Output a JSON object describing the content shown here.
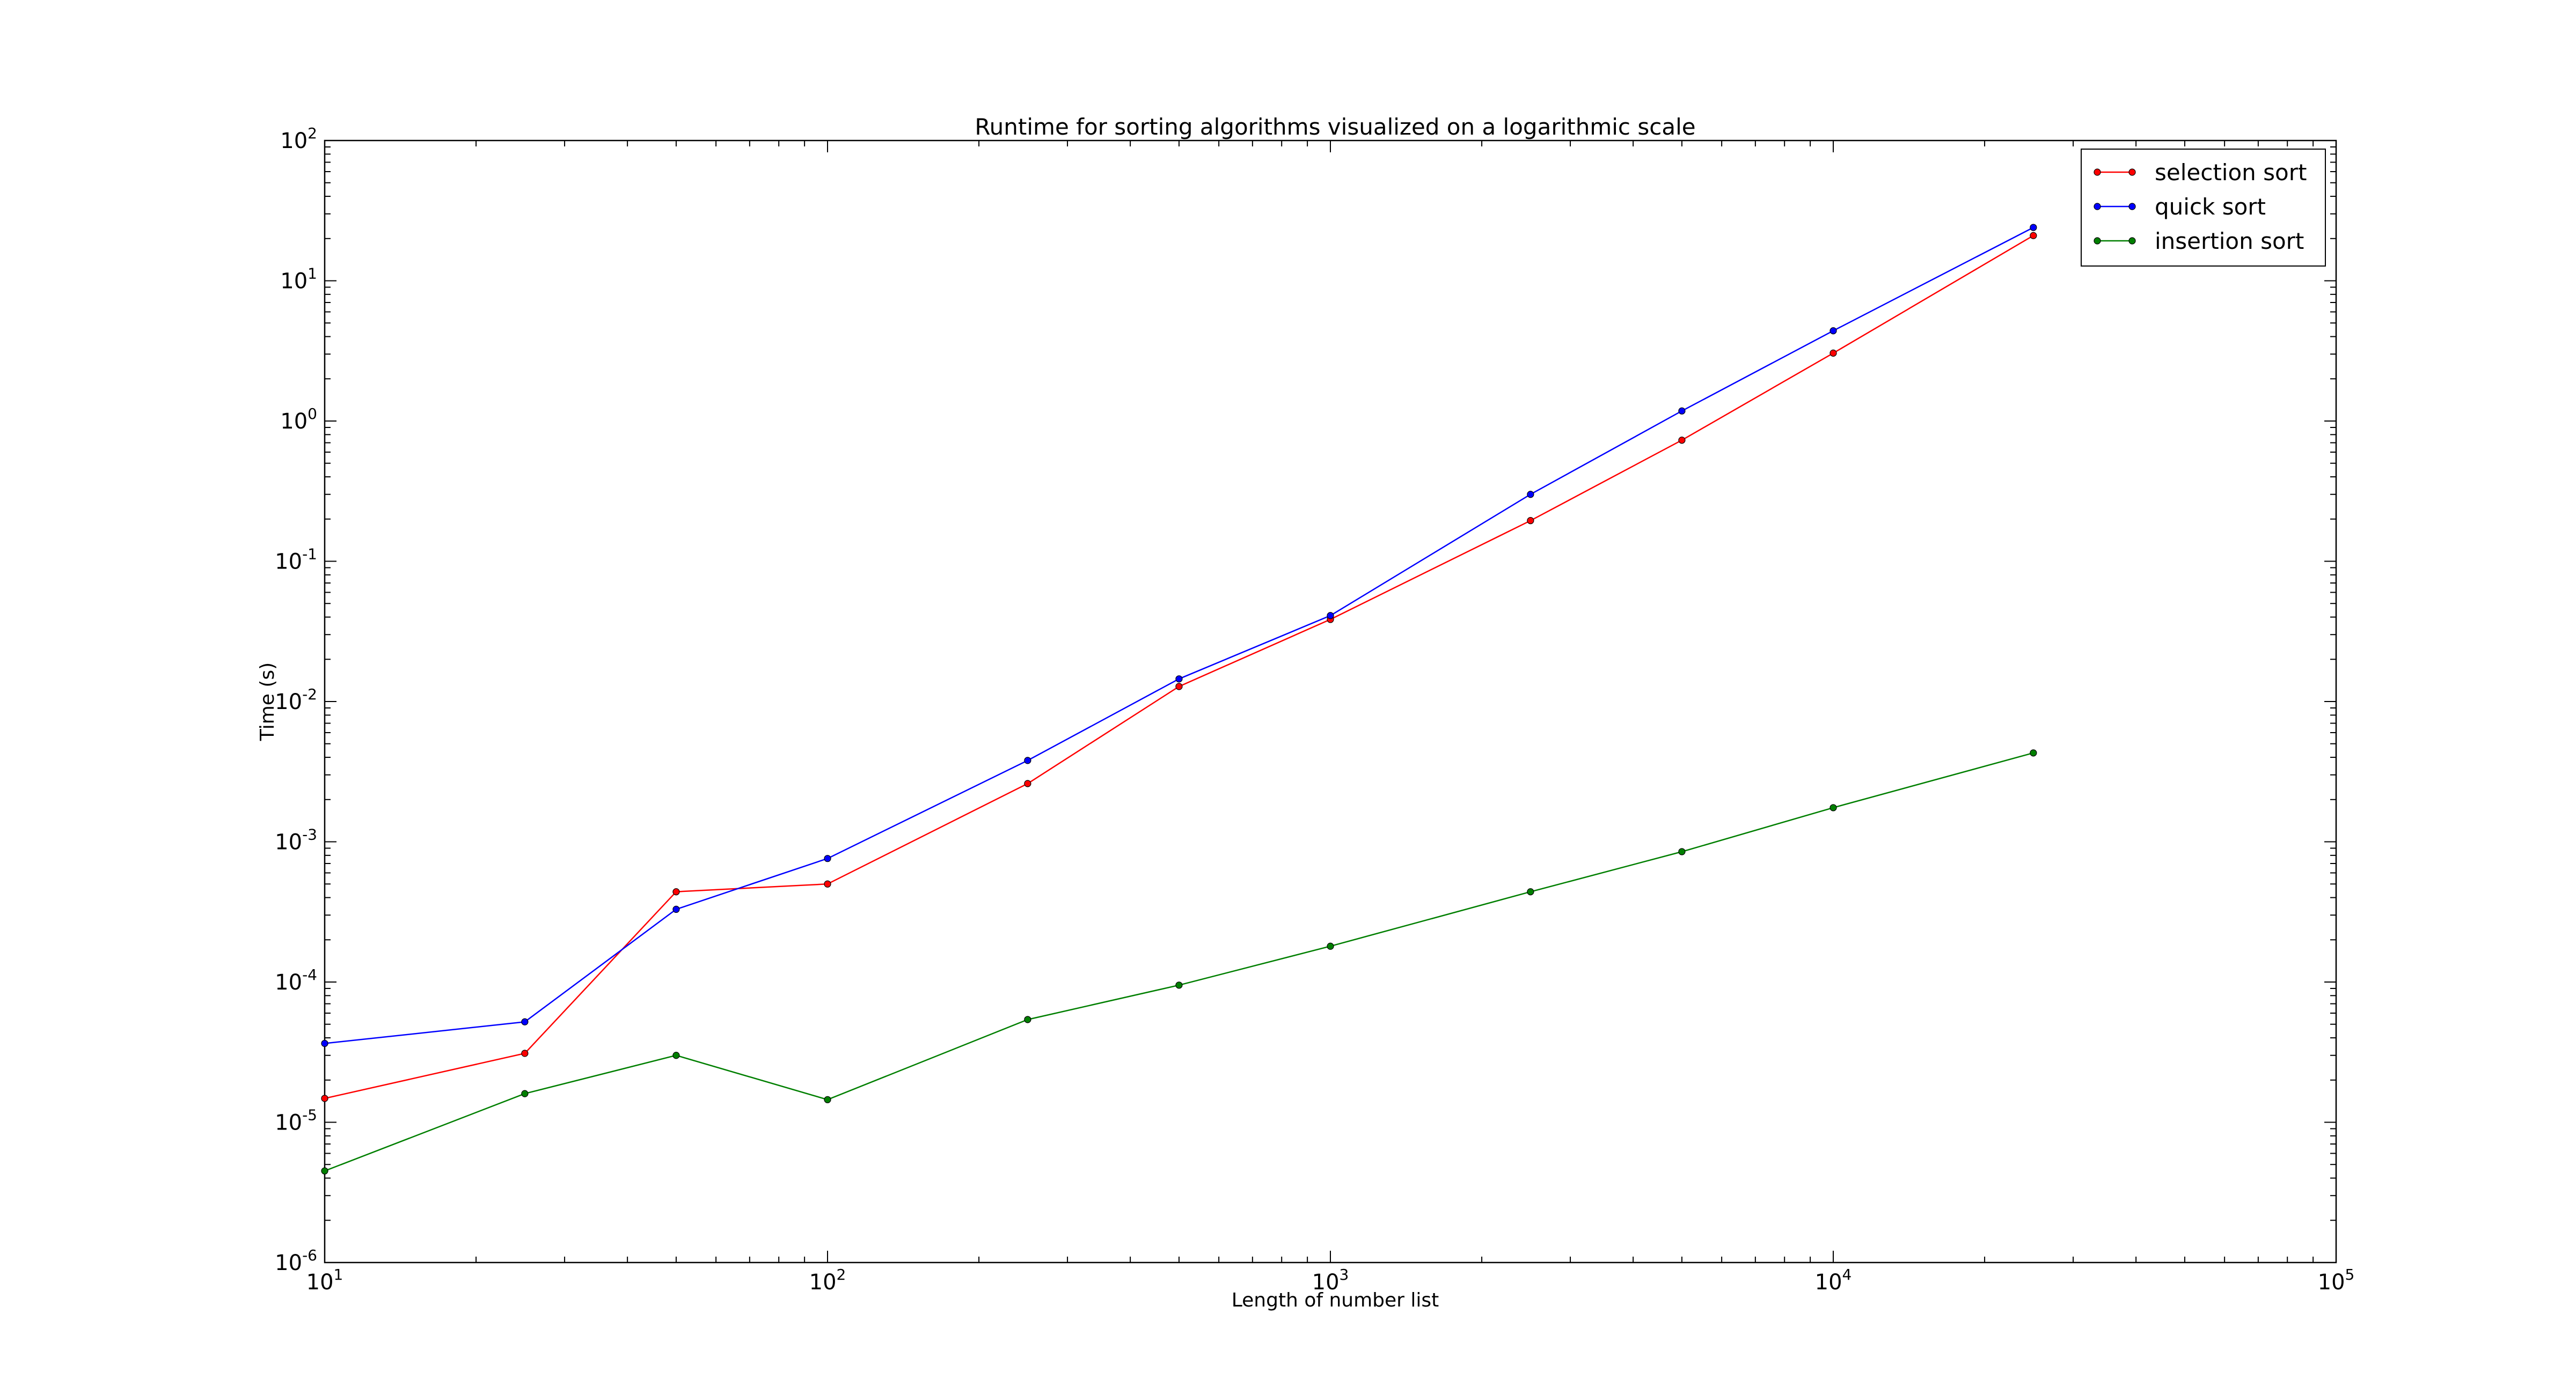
{
  "chart_data": {
    "type": "line",
    "title": "Runtime for sorting algorithms visualized on a logarithmic scale",
    "xlabel": "Length of number list",
    "ylabel": "Time (s)",
    "x_scale": "log",
    "y_scale": "log",
    "xlim": [
      10,
      100000
    ],
    "ylim": [
      1e-06,
      100
    ],
    "x_ticks": [
      {
        "value": 10,
        "base": "10",
        "exp": "1"
      },
      {
        "value": 100,
        "base": "10",
        "exp": "2"
      },
      {
        "value": 1000,
        "base": "10",
        "exp": "3"
      },
      {
        "value": 10000,
        "base": "10",
        "exp": "4"
      },
      {
        "value": 100000,
        "base": "10",
        "exp": "5"
      }
    ],
    "y_ticks": [
      {
        "value": 100,
        "base": "10",
        "exp": "2"
      },
      {
        "value": 10,
        "base": "10",
        "exp": "1"
      },
      {
        "value": 1,
        "base": "10",
        "exp": "0"
      },
      {
        "value": 0.1,
        "base": "10",
        "exp": "-1"
      },
      {
        "value": 0.01,
        "base": "10",
        "exp": "-2"
      },
      {
        "value": 0.001,
        "base": "10",
        "exp": "-3"
      },
      {
        "value": 0.0001,
        "base": "10",
        "exp": "-4"
      },
      {
        "value": 1e-05,
        "base": "10",
        "exp": "-5"
      },
      {
        "value": 1e-06,
        "base": "10",
        "exp": "-6"
      }
    ],
    "grid": false,
    "legend_position": "top-right",
    "x": [
      10,
      25,
      50,
      100,
      250,
      500,
      1000,
      2500,
      5000,
      10000,
      25000
    ],
    "series": [
      {
        "name": "selection sort",
        "color": "#ff0000",
        "values": [
          1.48e-05,
          3.1e-05,
          0.00044,
          0.0005,
          0.0026,
          0.0128,
          0.0385,
          0.195,
          0.73,
          3.05,
          21.0
        ]
      },
      {
        "name": "quick sort",
        "color": "#0000ff",
        "values": [
          3.65e-05,
          5.2e-05,
          0.00033,
          0.00076,
          0.0038,
          0.0145,
          0.041,
          0.3,
          1.18,
          4.4,
          24.0
        ]
      },
      {
        "name": "insertion sort",
        "color": "#007f00",
        "values": [
          4.5e-06,
          1.6e-05,
          3e-05,
          1.45e-05,
          5.4e-05,
          9.5e-05,
          0.00018,
          0.00044,
          0.00085,
          0.00175,
          0.0043
        ]
      }
    ]
  }
}
